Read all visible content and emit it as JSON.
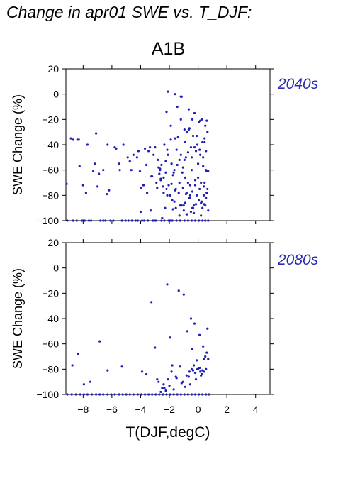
{
  "title": "Change in apr01 SWE vs. T_DJF:",
  "scenario": "A1B",
  "colors": {
    "points": "#1f1fb4",
    "period_label": "#2b2bb0"
  },
  "chart_data": [
    {
      "type": "scatter",
      "panel_label": "2040s",
      "xlabel": "",
      "ylabel": "SWE Change (%)",
      "xlim": [
        -9.2,
        5
      ],
      "ylim": [
        -100,
        20
      ],
      "xticks": [
        -8,
        -6,
        -4,
        -2,
        0,
        2,
        4
      ],
      "yticks": [
        20,
        0,
        -20,
        -40,
        -60,
        -80,
        -100
      ],
      "grid": false,
      "series": [
        {
          "color": "#1f1fb4",
          "x": [
            -9.1,
            -8.7,
            -8.45,
            -8.1,
            -8.0,
            -7.9,
            -7.6,
            -7.45,
            -6.8,
            -6.6,
            -6.45,
            -6.1,
            -5.9,
            -5.3,
            -5.05,
            -4.85,
            -4.6,
            -4.35,
            -4.2,
            -3.9,
            -3.75,
            -3.5,
            -3.15,
            -3.05,
            -2.95,
            -2.55,
            -2.35,
            -2.05,
            -1.95,
            -1.8,
            -1.5,
            -1.25,
            -0.95,
            -0.7,
            -0.45,
            -0.2,
            0.05,
            0.3,
            0.5,
            0.7,
            -8.3,
            -7.7,
            -7.2,
            -6.9,
            -6.3,
            -5.8,
            -5.5,
            -4.9,
            -4.65,
            -4.15,
            -3.6,
            -3.35,
            -2.8,
            -2.6,
            -2.4,
            -2.25,
            -2.15,
            -1.9,
            -1.65,
            -1.55,
            -1.4,
            -1.2,
            -1.1,
            -0.85,
            -0.6,
            -0.5,
            -0.35,
            -0.15,
            0.1,
            0.35,
            0.55,
            0.65,
            -3.1,
            -2.65,
            -2.3,
            -1.0,
            -0.55,
            0.25,
            0.45,
            0.6,
            0.4,
            0.2,
            -0.3,
            -0.8,
            -1.3,
            -1.75,
            -2.5,
            -3.3,
            -4.0,
            -2.2,
            -1.9,
            -1.6,
            -1.45,
            -1.15,
            -0.95,
            -0.75,
            -0.65,
            -0.4,
            -0.25,
            -0.1,
            0.05,
            0.15,
            0.3,
            0.5,
            0.6,
            -2.35,
            -2.1,
            -1.85,
            -1.7,
            -1.5,
            -1.3,
            -1.05,
            -0.9,
            -0.7,
            -0.55,
            -0.45,
            -0.2,
            0.0,
            0.2,
            0.4,
            0.55,
            0.7,
            -2.6,
            -2.2,
            -1.95,
            -1.65,
            -1.35,
            -1.15,
            -0.9,
            -0.8,
            -0.6,
            -0.4,
            -0.3,
            -0.1,
            0.1,
            0.25,
            0.45,
            0.65,
            -3.2,
            -2.9,
            -2.45,
            -2.15,
            -1.8,
            -1.55,
            -1.25,
            -1.0,
            -0.75,
            -0.5,
            -0.35,
            -0.15,
            0.05,
            0.3,
            0.5,
            0.7,
            -2.75,
            -2.4,
            -2.05,
            -1.75,
            -1.45,
            -1.2,
            -0.95,
            -0.7,
            -0.45,
            -0.25,
            -0.05,
            0.15,
            0.35,
            0.55,
            -3.0,
            -2.55,
            -2.25,
            -1.85,
            -1.6,
            -1.3,
            -1.05,
            -0.85,
            -0.6,
            -0.4,
            -0.2,
            0.0,
            0.2,
            0.4,
            0.6
          ],
          "y": [
            -100,
            -100,
            -100,
            -100,
            -100,
            -100,
            -100,
            -100,
            -100,
            -100,
            -100,
            -100,
            -100,
            -100,
            -100,
            -100,
            -100,
            -100,
            -100,
            -100,
            -100,
            -100,
            -100,
            -100,
            -100,
            -100,
            -100,
            -100,
            -100,
            -100,
            -100,
            -100,
            -100,
            -100,
            -100,
            -100,
            -100,
            -100,
            -100,
            -100,
            -36,
            -40,
            -55,
            -63,
            -40,
            -42,
            -55,
            -50,
            -60,
            -45,
            -56,
            -42,
            -52,
            -67,
            -78,
            -53,
            -44,
            -36,
            -60,
            -75,
            -34,
            -20,
            -62,
            -50,
            -27,
            -42,
            -33,
            -45,
            -44,
            -57,
            -45,
            -30,
            -48,
            -60,
            -90,
            -88,
            -80,
            -20,
            -38,
            -61,
            -87,
            -96,
            -94,
            -95,
            -96,
            -91,
            -98,
            -92,
            -93,
            -14,
            -25,
            -35,
            -10,
            -2,
            -28,
            -30,
            -12,
            -20,
            -15,
            -33,
            -22,
            -21,
            -38,
            -25,
            -21,
            -40,
            -48,
            -55,
            -62,
            -44,
            -52,
            -58,
            -66,
            -70,
            -72,
            -60,
            -68,
            -55,
            -70,
            -80,
            -82,
            -61,
            -68,
            -75,
            -80,
            -85,
            -78,
            -88,
            -86,
            -78,
            -82,
            -90,
            -88,
            -80,
            -75,
            -85,
            -70,
            -75,
            -65,
            -70,
            -73,
            -80,
            -84,
            -90,
            -88,
            -92,
            -95,
            -93,
            -90,
            -87,
            -84,
            -90,
            -88,
            -92,
            -58,
            -66,
            -72,
            -64,
            -56,
            -48,
            -52,
            -46,
            -50,
            -42,
            -40,
            -48,
            -50,
            -60,
            -42,
            -56,
            -62,
            -71,
            -76,
            -70,
            -74,
            -79,
            -82,
            -77,
            -72,
            -66,
            -86,
            -73,
            -78
          ],
          "x2": [
            -9.15,
            -8.85,
            -8.7,
            -8.4,
            -8.25,
            -8.0,
            -7.8,
            -7.3,
            -7.1,
            -7.0,
            -6.6,
            -6.35,
            -6.2,
            -5.7,
            -5.45,
            -5.2,
            -4.75,
            -4.5,
            -4.25,
            -4.05,
            -3.95,
            -3.8,
            -3.45,
            -3.25,
            -3.0,
            -2.7,
            -2.1,
            -1.6,
            -1.2,
            -0.9,
            -0.65,
            0.45,
            -3.55,
            -3.7,
            -2.65,
            -2.85
          ],
          "y2": [
            -71,
            -35,
            -36,
            -36,
            -57,
            -72,
            -78,
            -61,
            -31,
            -73,
            -60,
            -79,
            -76,
            -43,
            -60,
            -40,
            -53,
            -48,
            -50,
            -61,
            -74,
            -72,
            -45,
            -65,
            -42,
            -63,
            2,
            0,
            -2,
            -38,
            -28,
            -35,
            -78,
            -43,
            -59,
            -74
          ]
        }
      ]
    },
    {
      "type": "scatter",
      "panel_label": "2080s",
      "xlabel": "T(DJF,degC)",
      "ylabel": "SWE Change (%)",
      "xlim": [
        -9.2,
        5
      ],
      "ylim": [
        -100,
        20
      ],
      "xticks": [
        -8,
        -6,
        -4,
        -2,
        0,
        2,
        4
      ],
      "xtick_labels": [
        "−8",
        "−6",
        "−4",
        "−2",
        "0",
        "2",
        "4"
      ],
      "yticks": [
        20,
        0,
        -20,
        -40,
        -60,
        -80,
        -100
      ],
      "grid": false,
      "series": [
        {
          "color": "#1f1fb4",
          "x": [
            -9.1,
            -8.8,
            -8.5,
            -8.2,
            -7.95,
            -7.7,
            -7.4,
            -7.1,
            -6.85,
            -6.6,
            -6.3,
            -6.05,
            -5.8,
            -5.5,
            -5.25,
            -5.0,
            -4.75,
            -4.5,
            -4.2,
            -3.95,
            -3.7,
            -3.45,
            -3.2,
            -2.95,
            -2.7,
            -2.45,
            -2.2,
            -1.95,
            -1.7,
            -1.45,
            -1.2,
            -0.95,
            -0.7,
            -0.45,
            -0.2,
            0.05,
            0.3,
            0.55,
            0.75,
            -8.75,
            -8.35,
            -7.95,
            -7.5,
            -6.85,
            -6.3,
            -5.3,
            -3.9,
            -3.6,
            -3.25,
            -3.0,
            -2.85,
            -2.35,
            -2.15,
            -1.95,
            -1.8,
            -1.35,
            -1.0,
            -0.75,
            -0.5,
            -0.4,
            -0.25,
            -0.1,
            0.1,
            0.2,
            0.35,
            0.5,
            0.6,
            0.65,
            0.4,
            0.3,
            0.15,
            0.0,
            -0.15,
            -0.3,
            -0.55,
            -0.65,
            -0.9,
            -1.15,
            -1.5,
            -1.7,
            -2.0,
            -2.25,
            -2.5,
            -2.6,
            -2.75,
            -0.6,
            -0.45,
            -0.35,
            -0.2,
            -0.05,
            0.1,
            0.25,
            0.4,
            0.55,
            0.7,
            -0.8,
            -1.05,
            -1.25,
            -1.55,
            -1.85,
            -2.1,
            -2.4
          ],
          "y": [
            -100,
            -100,
            -100,
            -100,
            -100,
            -100,
            -100,
            -100,
            -100,
            -100,
            -100,
            -100,
            -100,
            -100,
            -100,
            -100,
            -100,
            -100,
            -100,
            -100,
            -100,
            -100,
            -100,
            -100,
            -100,
            -100,
            -100,
            -100,
            -100,
            -100,
            -100,
            -100,
            -100,
            -100,
            -100,
            -100,
            -100,
            -100,
            -100,
            -77,
            -68,
            -92,
            -90,
            -58,
            -81,
            -78,
            -82,
            -84,
            -27,
            -63,
            -88,
            -95,
            -13,
            -55,
            -77,
            -18,
            -21,
            -50,
            -40,
            -64,
            -44,
            -73,
            -53,
            -85,
            -62,
            -70,
            -67,
            -48,
            -72,
            -81,
            -82,
            -80,
            -88,
            -77,
            -92,
            -86,
            -94,
            -91,
            -87,
            -96,
            -93,
            -97,
            -95,
            -98,
            -90,
            -82,
            -80,
            -81,
            -83,
            -80,
            -79,
            -84,
            -82,
            -80,
            -72,
            -85,
            -90,
            -78,
            -86,
            -82,
            -88,
            -92
          ]
        }
      ]
    }
  ]
}
